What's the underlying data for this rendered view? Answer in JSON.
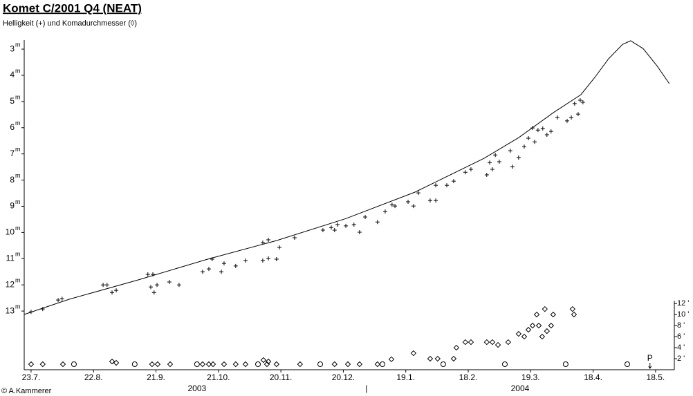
{
  "chart_data": {
    "type": "scatter",
    "title": "Komet C/2001 Q4 (NEAT)",
    "subtitle": "Helligkeit (+) und Komadurchmesser (◊)",
    "credit": "© A.Kammerer",
    "xlim": [
      -3.3,
      309
    ],
    "xticks": [
      {
        "value": 0,
        "label": "23.7."
      },
      {
        "value": 30,
        "label": "22.8."
      },
      {
        "value": 60,
        "label": "21.9."
      },
      {
        "value": 90,
        "label": "21.10."
      },
      {
        "value": 120,
        "label": "20.11."
      },
      {
        "value": 150,
        "label": "20.12."
      },
      {
        "value": 180,
        "label": "19.1."
      },
      {
        "value": 210,
        "label": "18.2."
      },
      {
        "value": 240,
        "label": "19.3."
      },
      {
        "value": 270,
        "label": "18.4."
      },
      {
        "value": 300,
        "label": "18.5."
      }
    ],
    "year_labels": [
      {
        "text": "2003",
        "x": 79.7
      },
      {
        "text": "2004",
        "x": 234.9
      }
    ],
    "year_divider": {
      "text": "|",
      "x": 161.1
    },
    "ylim": [
      15.24,
      2.18
    ],
    "yticks": [
      3,
      4,
      5,
      6,
      7,
      8,
      9,
      10,
      11,
      12,
      13
    ],
    "y_unit": "m",
    "y2lim": [
      0,
      62
    ],
    "y2ticks": [
      {
        "value": 2,
        "label": "2 '"
      },
      {
        "value": 4,
        "label": "4 '"
      },
      {
        "value": 6,
        "label": "6 '"
      },
      {
        "value": 8,
        "label": "8 '"
      },
      {
        "value": 10,
        "label": "10 '"
      },
      {
        "value": 12,
        "label": "12 '"
      }
    ],
    "perihelion": {
      "label": "P",
      "x": 297.3
    },
    "circle_x": [
      20.6,
      49.8,
      79.7,
      109.0,
      138.9,
      168.8,
      198.0,
      227.6,
      256.8,
      286.4
    ],
    "series": [
      {
        "marker": "line",
        "color": "#000000",
        "x": [
          -3.3,
          18.3,
          51.5,
          84.7,
          117.9,
          151.2,
          184.4,
          217.6,
          234.2,
          250.8,
          264.1,
          270.8,
          277.4,
          284.1,
          288.0,
          294.0,
          300.7,
          306.6
        ],
        "values": [
          13.13,
          12.55,
          11.81,
          11.02,
          10.31,
          9.47,
          8.46,
          7.17,
          6.38,
          5.43,
          4.74,
          4.08,
          3.37,
          2.82,
          2.68,
          2.98,
          3.64,
          4.32
        ]
      },
      {
        "marker": "+",
        "color": "#000000",
        "x": [
          0,
          5.6,
          13.0,
          14.9,
          34.6,
          36.5,
          38.9,
          40.9,
          56.1,
          58.5,
          57.5,
          59.1,
          60.5,
          66.4,
          71.1,
          82.4,
          85.4,
          87.0,
          91.4,
          92.7,
          98.3,
          103.0,
          111.3,
          114.0,
          111.3,
          114.0,
          117.9,
          119.3,
          126.6,
          140.2,
          144.2,
          145.8,
          147.2,
          151.2,
          155.1,
          157.8,
          160.5,
          166.4,
          170.1,
          173.4,
          174.8,
          181.1,
          183.7,
          186.0,
          191.7,
          194.4,
          194.4,
          199.7,
          203.0,
          208.6,
          211.3,
          218.9,
          220.3,
          223.0,
          221.6,
          224.9,
          230.2,
          231.2,
          234.2,
          236.9,
          238.9,
          240.9,
          241.9,
          243.5,
          245.8,
          247.8,
          249.8,
          252.8,
          257.5,
          259.5,
          261.1,
          262.8,
          263.8,
          265.1
        ],
        "values": [
          13.03,
          12.92,
          12.58,
          12.53,
          12.0,
          12.0,
          12.29,
          12.21,
          11.6,
          11.6,
          12.08,
          12.29,
          12.0,
          11.89,
          12.0,
          11.5,
          11.39,
          11.02,
          11.5,
          11.18,
          11.28,
          11.07,
          10.39,
          10.28,
          11.07,
          10.99,
          11.02,
          10.57,
          10.2,
          9.91,
          9.81,
          9.91,
          9.7,
          9.75,
          9.7,
          9.99,
          9.41,
          9.6,
          9.2,
          8.94,
          8.99,
          8.83,
          8.99,
          8.49,
          8.78,
          8.2,
          8.78,
          8.2,
          8.04,
          7.7,
          7.59,
          7.8,
          7.33,
          7.04,
          7.59,
          7.3,
          6.88,
          7.49,
          7.14,
          6.72,
          6.4,
          6.01,
          6.54,
          6.09,
          6.03,
          6.27,
          6.14,
          5.61,
          5.74,
          5.61,
          5.08,
          5.48,
          4.95,
          5.03
        ]
      },
      {
        "marker": "diamond",
        "color": "#000000",
        "axis": "y2",
        "x": [
          0,
          5.6,
          15.3,
          38.9,
          40.9,
          58.1,
          60.8,
          66.8,
          82.4,
          85.4,
          87.4,
          92.7,
          98.3,
          103.0,
          111.6,
          113.3,
          114.0,
          117.9,
          129.2,
          145.8,
          152.2,
          157.8,
          166.4,
          173.1,
          183.7,
          191.7,
          195.3,
          203.0,
          204.3,
          208.6,
          211.3,
          218.9,
          221.6,
          224.3,
          229.2,
          234.2,
          236.9,
          238.9,
          240.9,
          242.9,
          243.9,
          245.5,
          246.8,
          247.8,
          249.8,
          250.8,
          260.1,
          260.8
        ],
        "values": [
          1,
          1,
          1,
          1.5,
          1.25,
          1,
          1,
          1,
          1,
          1,
          1,
          1,
          1,
          1,
          1.75,
          1,
          1.5,
          1,
          1,
          1,
          1,
          1,
          1,
          1.9,
          3,
          2,
          2,
          2,
          4,
          5,
          5,
          5,
          5,
          4.5,
          5,
          6.5,
          6,
          7.25,
          8,
          10,
          8,
          6,
          11,
          7,
          8,
          10,
          11,
          10
        ]
      }
    ]
  }
}
